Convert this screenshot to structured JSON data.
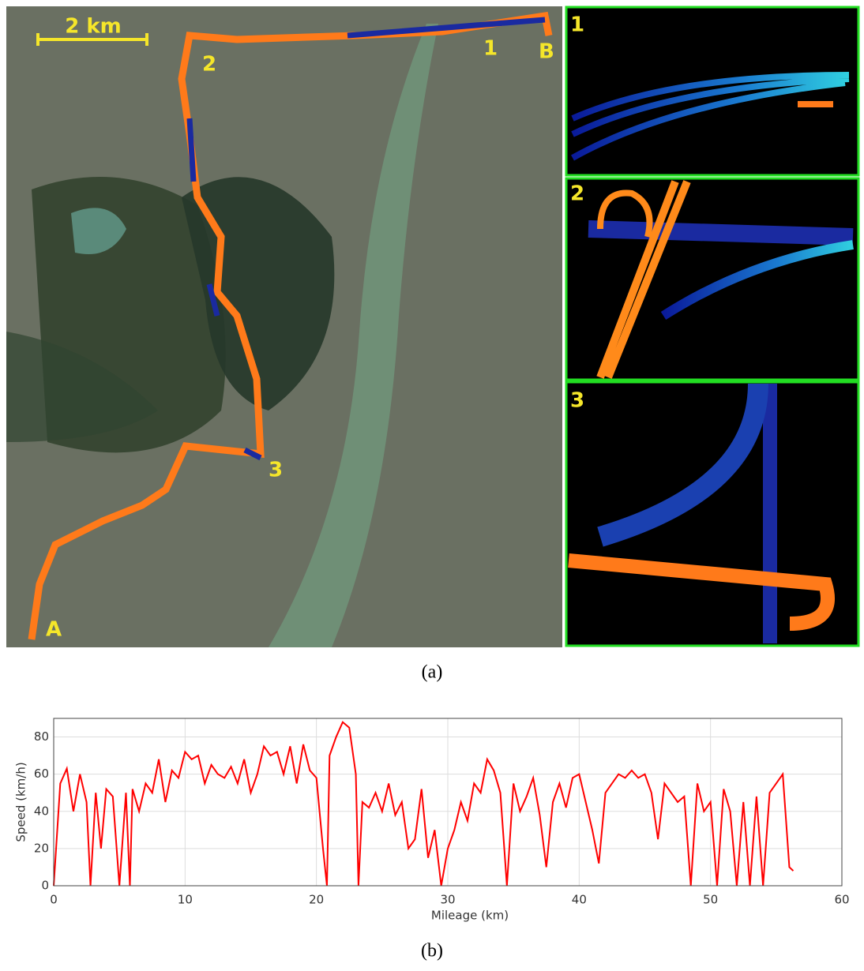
{
  "figure": {
    "map": {
      "scale_label": "2 km",
      "markers": [
        "1",
        "2",
        "3",
        "A",
        "B"
      ],
      "inset_labels": [
        "1",
        "2",
        "3"
      ]
    },
    "caption_a": "(a)",
    "caption_b": "(b)"
  },
  "chart_data": {
    "type": "line",
    "x_label": "Mileage (km)",
    "y_label": "Speed (km/h)",
    "x": [
      0,
      0.5,
      1,
      1.5,
      2,
      2.5,
      2.8,
      3.2,
      3.6,
      4,
      4.5,
      5,
      5.5,
      5.8,
      6,
      6.5,
      7,
      7.5,
      8,
      8.5,
      9,
      9.5,
      10,
      10.5,
      11,
      11.5,
      12,
      12.5,
      13,
      13.5,
      14,
      14.5,
      15,
      15.5,
      16,
      16.5,
      17,
      17.5,
      18,
      18.5,
      19,
      19.5,
      20,
      20.5,
      20.8,
      21,
      21.5,
      22,
      22.5,
      23,
      23.2,
      23.5,
      24,
      24.5,
      25,
      25.5,
      26,
      26.5,
      27,
      27.5,
      28,
      28.5,
      29,
      29.5,
      30,
      30.5,
      31,
      31.5,
      32,
      32.5,
      33,
      33.5,
      34,
      34.5,
      35,
      35.5,
      36,
      36.5,
      37,
      37.5,
      38,
      38.5,
      39,
      39.5,
      40,
      40.5,
      41,
      41.5,
      42,
      42.5,
      43,
      43.5,
      44,
      44.5,
      45,
      45.5,
      46,
      46.5,
      47,
      47.5,
      48,
      48.5,
      49,
      49.5,
      50,
      50.5,
      51,
      51.5,
      52,
      52.5,
      53,
      53.5,
      54,
      54.5,
      55,
      55.5,
      56,
      56.3
    ],
    "series": [
      {
        "color": "#ff0000",
        "values": [
          0,
          55,
          63,
          40,
          60,
          45,
          0,
          50,
          20,
          52,
          48,
          0,
          50,
          0,
          52,
          40,
          55,
          50,
          68,
          45,
          62,
          58,
          72,
          68,
          70,
          55,
          65,
          60,
          58,
          64,
          55,
          68,
          50,
          60,
          75,
          70,
          72,
          60,
          75,
          55,
          76,
          62,
          58,
          20,
          0,
          70,
          80,
          88,
          85,
          60,
          0,
          45,
          42,
          50,
          40,
          55,
          38,
          45,
          20,
          25,
          52,
          15,
          30,
          0,
          20,
          30,
          45,
          35,
          55,
          50,
          68,
          62,
          50,
          0,
          55,
          40,
          48,
          58,
          38,
          10,
          45,
          55,
          42,
          58,
          60,
          45,
          30,
          12,
          50,
          55,
          60,
          58,
          62,
          58,
          60,
          50,
          25,
          55,
          50,
          45,
          48,
          0,
          55,
          40,
          45,
          0,
          52,
          40,
          0,
          45,
          0,
          48,
          0,
          50,
          55,
          60,
          10,
          8
        ]
      }
    ],
    "xlim": [
      0,
      60
    ],
    "xticks": [
      0,
      10,
      20,
      30,
      40,
      50,
      60
    ],
    "ylim": [
      0,
      90
    ],
    "yticks": [
      0,
      20,
      40,
      60,
      80
    ],
    "grid": true
  }
}
